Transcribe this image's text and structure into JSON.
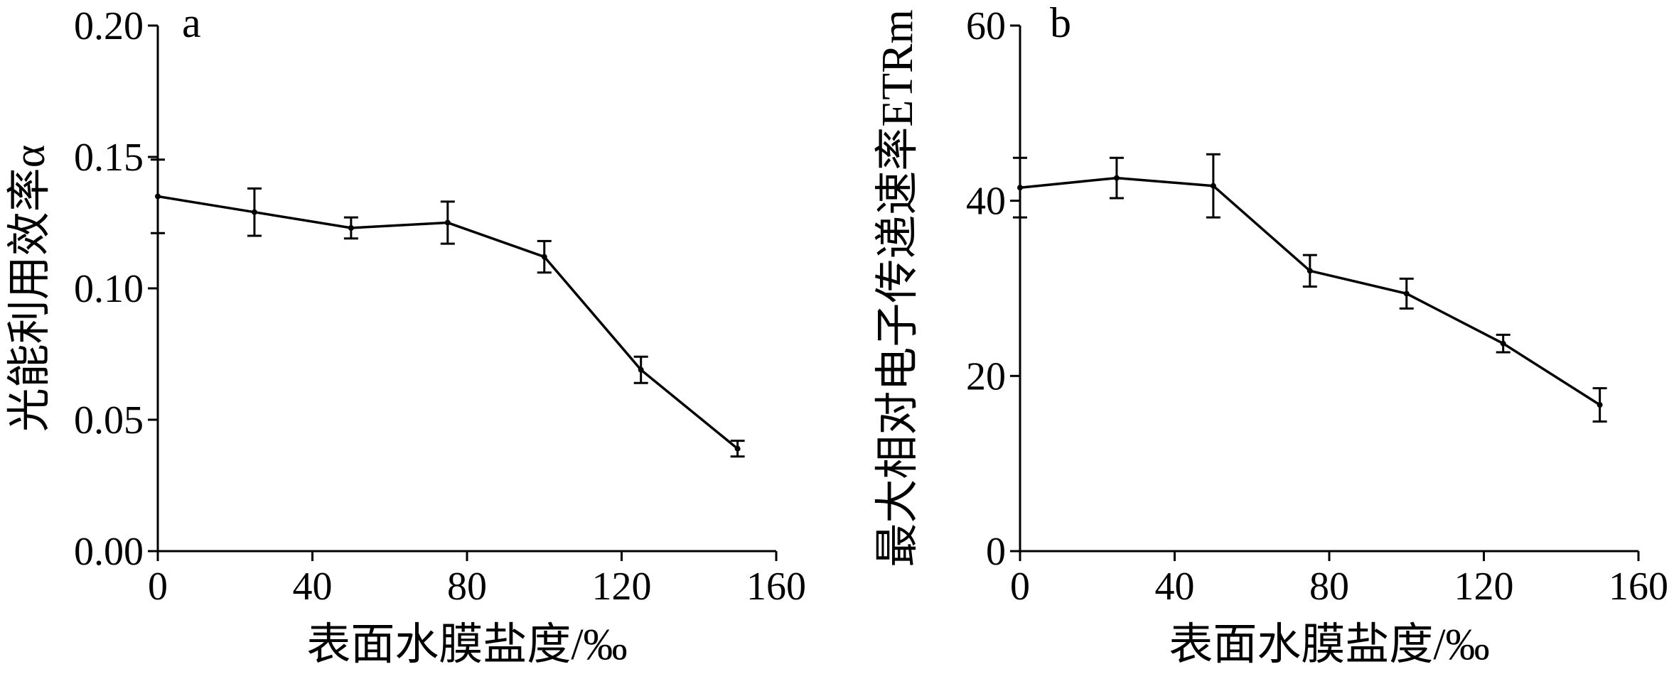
{
  "chart_data": [
    {
      "type": "line",
      "panel_label": "a",
      "xlabel": "表面水膜盐度/‰",
      "ylabel": "光能利用效率α",
      "xlim": [
        0,
        160
      ],
      "ylim": [
        0,
        0.2
      ],
      "xticks": [
        "0",
        "40",
        "80",
        "120",
        "160"
      ],
      "yticks": [
        "0.00",
        "0.05",
        "0.10",
        "0.15",
        "0.20"
      ],
      "x": [
        0,
        25,
        50,
        75,
        100,
        125,
        150
      ],
      "y": [
        0.135,
        0.129,
        0.123,
        0.125,
        0.112,
        0.069,
        0.039
      ],
      "err": [
        0.014,
        0.009,
        0.004,
        0.008,
        0.006,
        0.005,
        0.003
      ]
    },
    {
      "type": "line",
      "panel_label": "b",
      "xlabel": "表面水膜盐度/‰",
      "ylabel": "最大相对电子传递速率ETRm",
      "xlim": [
        0,
        160
      ],
      "ylim": [
        0,
        60
      ],
      "xticks": [
        "0",
        "40",
        "80",
        "120",
        "160"
      ],
      "yticks": [
        "0",
        "20",
        "40",
        "60"
      ],
      "x": [
        0,
        25,
        50,
        75,
        100,
        125,
        150
      ],
      "y": [
        41.5,
        42.6,
        41.7,
        32.0,
        29.4,
        23.7,
        16.7
      ],
      "err": [
        3.4,
        2.3,
        3.6,
        1.8,
        1.7,
        1.0,
        1.9
      ]
    }
  ]
}
